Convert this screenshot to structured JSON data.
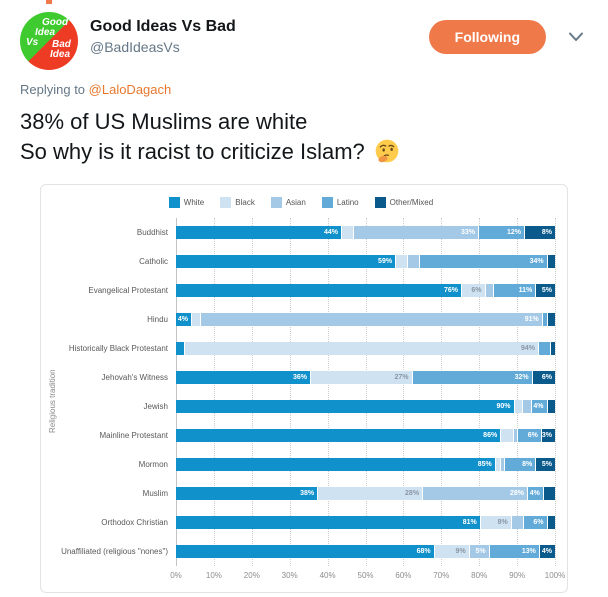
{
  "header": {
    "display_name": "Good Ideas Vs Bad",
    "handle": "@BadIdeasVs",
    "follow_button_label": "Following",
    "avatar": {
      "good1": "Good",
      "good2": "Idea",
      "vs": "Vs",
      "bad1": "Bad",
      "bad2": "Idea",
      "green": "#3fca2f",
      "red": "#ee3b24"
    }
  },
  "reply_line": {
    "prefix": "Replying to ",
    "mention": "@LaloDagach"
  },
  "tweet": {
    "line1": "38% of US Muslims are white",
    "line2": "So why is it racist to criticize Islam?",
    "emoji_name": "thinking-face"
  },
  "colors": {
    "accent_orange": "#f0794a",
    "link_orange": "#e8772e",
    "text_primary": "#14171a",
    "text_secondary": "#657786",
    "card_border": "#e3e3e3"
  },
  "chart_data": {
    "type": "bar",
    "stacked": true,
    "orientation": "horizontal",
    "ylabel": "Religious tradition",
    "xlim": [
      0,
      100
    ],
    "grid": "dotted-vertical",
    "legend_position": "top-center",
    "series_names": [
      "White",
      "Black",
      "Asian",
      "Latino",
      "Other/Mixed"
    ],
    "series_colors": [
      "#1191cb",
      "#cfe2f1",
      "#a3c9e6",
      "#62abd9",
      "#0a5a8c"
    ],
    "series_label_colors": [
      "#ffffff",
      "#8a97a5",
      "#ffffff",
      "#ffffff",
      "#ffffff"
    ],
    "x_ticks": [
      "0%",
      "10%",
      "20%",
      "30%",
      "40%",
      "50%",
      "60%",
      "70%",
      "80%",
      "90%",
      "100%"
    ],
    "categories": [
      "Buddhist",
      "Catholic",
      "Evangelical Protestant",
      "Hindu",
      "Historically Black Protestant",
      "Jehovah's Witness",
      "Jewish",
      "Mainline Protestant",
      "Mormon",
      "Muslim",
      "Orthodox Christian",
      "Unaffiliated (religious \"nones\")"
    ],
    "rows": [
      {
        "category": "Buddhist",
        "values": [
          44,
          3,
          33,
          12,
          8
        ],
        "labels": [
          "44%",
          "",
          "33%",
          "12%",
          "8%"
        ]
      },
      {
        "category": "Catholic",
        "values": [
          59,
          3,
          3,
          34,
          2
        ],
        "labels": [
          "59%",
          "",
          "",
          "34%",
          ""
        ]
      },
      {
        "category": "Evangelical Protestant",
        "values": [
          76,
          6,
          2,
          11,
          5
        ],
        "labels": [
          "76%",
          "6%",
          "",
          "11%",
          "5%"
        ]
      },
      {
        "category": "Hindu",
        "values": [
          4,
          2,
          91,
          1,
          2
        ],
        "labels": [
          "4%",
          "",
          "91%",
          "",
          ""
        ]
      },
      {
        "category": "Historically Black Protestant",
        "values": [
          2,
          94,
          0,
          3,
          1
        ],
        "labels": [
          "",
          "94%",
          "",
          "",
          ""
        ]
      },
      {
        "category": "Jehovah's Witness",
        "values": [
          36,
          27,
          0,
          32,
          6
        ],
        "labels": [
          "36%",
          "27%",
          "",
          "32%",
          "6%"
        ]
      },
      {
        "category": "Jewish",
        "values": [
          90,
          2,
          2,
          4,
          2
        ],
        "labels": [
          "90%",
          "",
          "",
          "4%",
          ""
        ]
      },
      {
        "category": "Mainline Protestant",
        "values": [
          86,
          3,
          1,
          6,
          3
        ],
        "labels": [
          "86%",
          "",
          "",
          "6%",
          "3%"
        ]
      },
      {
        "category": "Mormon",
        "values": [
          85,
          1,
          1,
          8,
          5
        ],
        "labels": [
          "85%",
          "",
          "",
          "8%",
          "5%"
        ]
      },
      {
        "category": "Muslim",
        "values": [
          38,
          28,
          28,
          4,
          3
        ],
        "labels": [
          "38%",
          "28%",
          "28%",
          "4%",
          ""
        ]
      },
      {
        "category": "Orthodox Christian",
        "values": [
          81,
          8,
          3,
          6,
          2
        ],
        "labels": [
          "81%",
          "8%",
          "",
          "6%",
          ""
        ]
      },
      {
        "category": "Unaffiliated (religious \"nones\")",
        "values": [
          68,
          9,
          5,
          13,
          4
        ],
        "labels": [
          "68%",
          "9%",
          "5%",
          "13%",
          "4%"
        ]
      }
    ]
  }
}
